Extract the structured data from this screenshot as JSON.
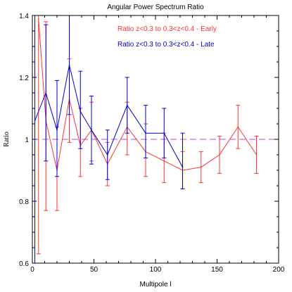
{
  "chart_data": {
    "type": "line",
    "title": "Angular Power Spectrum Ratio",
    "xlabel": "Multipole l",
    "ylabel": "Ratio",
    "xlim": [
      0,
      200
    ],
    "ylim": [
      0.6,
      1.4
    ],
    "x_ticks": [
      0,
      50,
      100,
      150,
      200
    ],
    "y_ticks": [
      0.6,
      0.8,
      1.0,
      1.2,
      1.4
    ],
    "y_tick_labels": [
      "0.6",
      "0.8",
      "1",
      "1.2",
      "1.4"
    ],
    "reference_line": {
      "y": 1.0,
      "color": "#cc44cc",
      "style": "dashed"
    },
    "legend_position": "top-right",
    "series": [
      {
        "name": "Ratio z<0.3 to 0.3<z<0.4 - Early",
        "color": "#ff3333",
        "points": [
          {
            "x": 5,
            "y": 1.39,
            "lo": 0.63,
            "hi": 1.4
          },
          {
            "x": 11,
            "y": 1.06,
            "lo": 0.77,
            "hi": 1.38
          },
          {
            "x": 20,
            "y": 0.9,
            "lo": 0.77,
            "hi": 1.04
          },
          {
            "x": 30,
            "y": 1.13,
            "lo": 0.99,
            "hi": 1.26
          },
          {
            "x": 39,
            "y": 0.98,
            "lo": 0.88,
            "hi": 1.1
          },
          {
            "x": 48,
            "y": 1.03,
            "lo": 0.93,
            "hi": 1.12
          },
          {
            "x": 61,
            "y": 0.92,
            "lo": 0.85,
            "hi": 0.99
          },
          {
            "x": 77,
            "y": 1.04,
            "lo": 0.95,
            "hi": 1.12
          },
          {
            "x": 92,
            "y": 0.96,
            "lo": 0.88,
            "hi": 1.05
          },
          {
            "x": 107,
            "y": 0.93,
            "lo": 0.86,
            "hi": 1.02
          },
          {
            "x": 122,
            "y": 0.9,
            "lo": 0.84,
            "hi": 0.96
          },
          {
            "x": 137,
            "y": 0.91,
            "lo": 0.86,
            "hi": 0.96
          },
          {
            "x": 152,
            "y": 0.95,
            "lo": 0.89,
            "hi": 1.01
          },
          {
            "x": 167,
            "y": 1.04,
            "lo": 0.97,
            "hi": 1.11
          },
          {
            "x": 182,
            "y": 0.95,
            "lo": 0.89,
            "hi": 1.01
          }
        ]
      },
      {
        "name": "Ratio z<0.3 to 0.3<z<0.4 - Late",
        "color": "#0000cc",
        "points": [
          {
            "x": 2,
            "y": 1.06,
            "lo": 0.6,
            "hi": 1.4
          },
          {
            "x": 11,
            "y": 1.15,
            "lo": 0.93,
            "hi": 1.37
          },
          {
            "x": 20,
            "y": 1.03,
            "lo": 0.88,
            "hi": 1.19
          },
          {
            "x": 30,
            "y": 1.24,
            "lo": 1.08,
            "hi": 1.4
          },
          {
            "x": 39,
            "y": 1.09,
            "lo": 0.97,
            "hi": 1.22
          },
          {
            "x": 48,
            "y": 1.03,
            "lo": 0.92,
            "hi": 1.14
          },
          {
            "x": 61,
            "y": 0.95,
            "lo": 0.87,
            "hi": 1.03
          },
          {
            "x": 77,
            "y": 1.11,
            "lo": 1.02,
            "hi": 1.2
          },
          {
            "x": 92,
            "y": 1.02,
            "lo": 0.94,
            "hi": 1.11
          },
          {
            "x": 107,
            "y": 1.02,
            "lo": 0.94,
            "hi": 1.1
          },
          {
            "x": 122,
            "y": 0.91,
            "lo": 0.84,
            "hi": 1.02
          }
        ]
      }
    ]
  }
}
